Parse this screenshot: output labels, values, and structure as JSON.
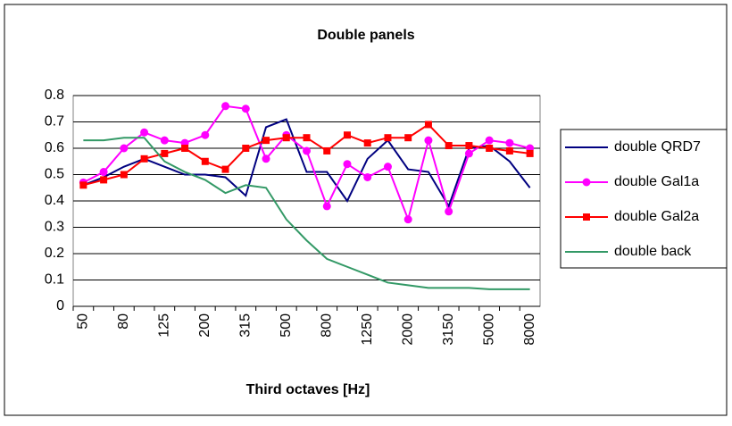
{
  "chart_data": {
    "type": "line",
    "title": "Double panels",
    "x_label": "Third octaves [Hz]",
    "categories": [
      "50",
      null,
      "80",
      null,
      "125",
      null,
      "200",
      null,
      "315",
      null,
      "500",
      null,
      "800",
      null,
      "1250",
      null,
      "2000",
      null,
      "3150",
      null,
      "5000",
      null,
      "8000"
    ],
    "ylim": [
      0,
      0.8
    ],
    "yticks": [
      0,
      0.1,
      0.2,
      0.3,
      0.4,
      0.5,
      0.6,
      0.7,
      0.8
    ],
    "grid": true,
    "legend": "right",
    "series": [
      {
        "name": "double QRD7",
        "color": "#000080",
        "marker": "none",
        "values": [
          0.46,
          0.49,
          0.53,
          0.56,
          0.53,
          0.5,
          0.5,
          0.49,
          0.42,
          0.68,
          0.71,
          0.51,
          0.51,
          0.4,
          0.56,
          0.63,
          0.52,
          0.51,
          0.38,
          0.6,
          0.61,
          0.55,
          0.45
        ]
      },
      {
        "name": "double Gal1a",
        "color": "#ff00ff",
        "marker": "circle",
        "values": [
          0.47,
          0.51,
          0.6,
          0.66,
          0.63,
          0.62,
          0.65,
          0.76,
          0.75,
          0.56,
          0.65,
          0.59,
          0.38,
          0.54,
          0.49,
          0.53,
          0.33,
          0.63,
          0.36,
          0.58,
          0.63,
          0.62,
          0.6
        ]
      },
      {
        "name": "double Gal2a",
        "color": "#ff0000",
        "marker": "square",
        "values": [
          0.46,
          0.48,
          0.5,
          0.56,
          0.58,
          0.6,
          0.55,
          0.52,
          0.6,
          0.63,
          0.64,
          0.64,
          0.59,
          0.65,
          0.62,
          0.64,
          0.64,
          0.69,
          0.61,
          0.61,
          0.6,
          0.59,
          0.58
        ]
      },
      {
        "name": "double back",
        "color": "#339966",
        "marker": "none",
        "values": [
          0.63,
          0.63,
          0.64,
          0.64,
          0.55,
          0.51,
          0.48,
          0.43,
          0.46,
          0.45,
          0.33,
          0.25,
          0.18,
          0.15,
          0.12,
          0.09,
          0.08,
          0.07,
          0.07,
          0.07,
          0.065,
          0.065,
          0.065
        ]
      }
    ]
  }
}
